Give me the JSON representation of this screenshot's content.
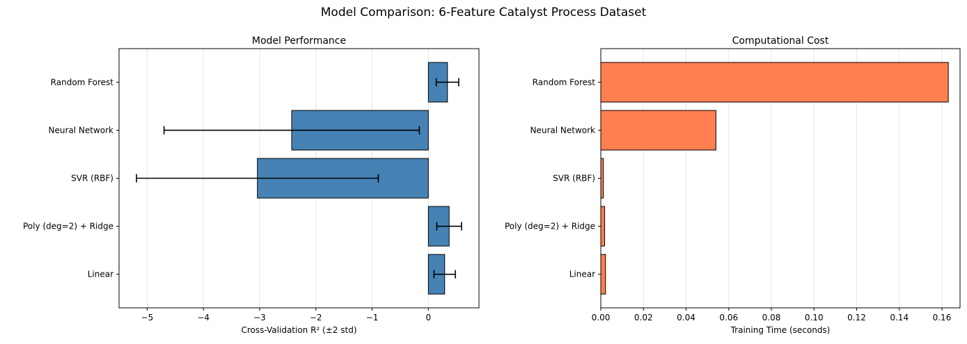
{
  "figure_title": "Model Comparison: 6-Feature Catalyst Process Dataset",
  "chart_data": [
    {
      "type": "bar",
      "orientation": "horizontal",
      "title": "Model Performance",
      "xlabel": "Cross-Validation R² (±2 std)",
      "ylabel": "",
      "categories": [
        "Linear",
        "Poly (deg=2) + Ridge",
        "SVR (RBF)",
        "Neural Network",
        "Random Forest"
      ],
      "values": [
        0.29,
        0.37,
        -3.04,
        -2.43,
        0.34
      ],
      "error": [
        0.19,
        0.22,
        2.15,
        2.27,
        0.2
      ],
      "xlim": [
        -5.5,
        0.9
      ],
      "xticks": [
        -5,
        -4,
        -3,
        -2,
        -1,
        0
      ],
      "xtick_labels": [
        "−5",
        "−4",
        "−3",
        "−2",
        "−1",
        "0"
      ],
      "color": "#4682b4",
      "grid": "x"
    },
    {
      "type": "bar",
      "orientation": "horizontal",
      "title": "Computational Cost",
      "xlabel": "Training Time (seconds)",
      "ylabel": "",
      "categories": [
        "Linear",
        "Poly (deg=2) + Ridge",
        "SVR (RBF)",
        "Neural Network",
        "Random Forest"
      ],
      "values": [
        0.0022,
        0.0018,
        0.0012,
        0.054,
        0.163
      ],
      "xlim": [
        0,
        0.1685
      ],
      "xticks": [
        0,
        0.02,
        0.04,
        0.06,
        0.08,
        0.1,
        0.12,
        0.14,
        0.16
      ],
      "xtick_labels": [
        "0.00",
        "0.02",
        "0.04",
        "0.06",
        "0.08",
        "0.10",
        "0.12",
        "0.14",
        "0.16"
      ],
      "color": "#ff7f50",
      "grid": "x"
    }
  ]
}
